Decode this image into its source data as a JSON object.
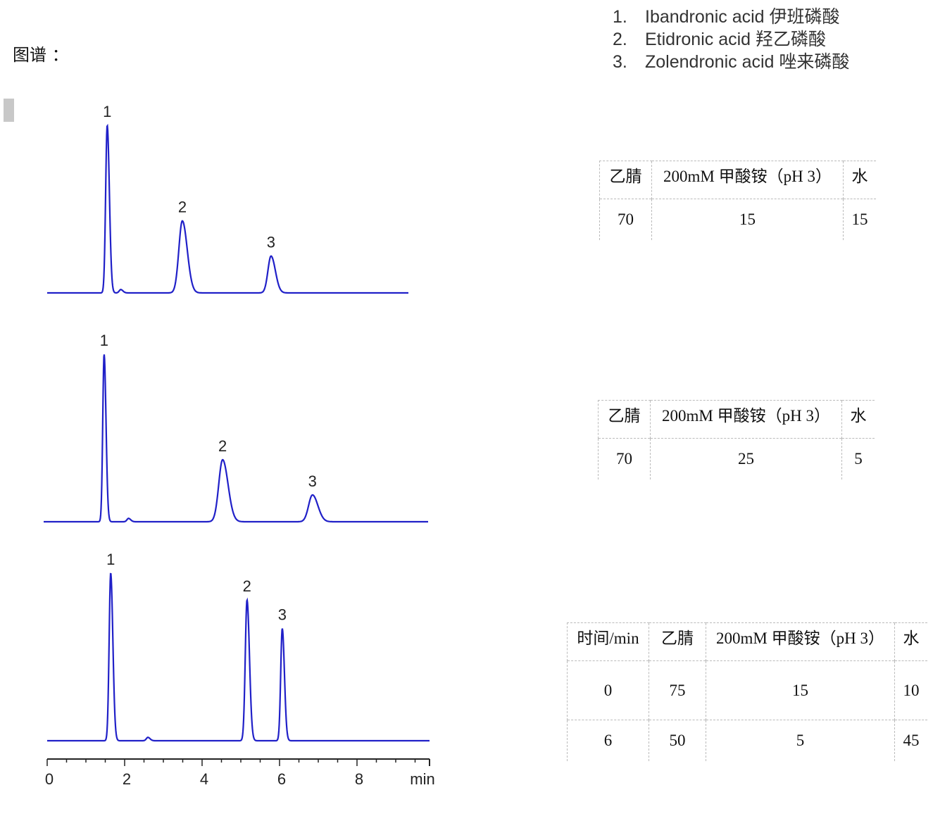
{
  "title": "图谱 ：",
  "legend": [
    {
      "num": "1.",
      "name": "Ibandronic acid 伊班磷酸"
    },
    {
      "num": "2.",
      "name": "Etidronic acid  羟乙磷酸"
    },
    {
      "num": "3.",
      "name": "Zolendronic acid 唑来磷酸"
    }
  ],
  "tables": [
    {
      "headers": [
        "乙腈",
        "200mM 甲酸铵（pH 3）",
        "水"
      ],
      "rows": [
        [
          "70",
          "15",
          "15"
        ]
      ]
    },
    {
      "headers": [
        "乙腈",
        "200mM 甲酸铵（pH 3）",
        "水"
      ],
      "rows": [
        [
          "70",
          "25",
          "5"
        ]
      ]
    },
    {
      "headers": [
        "时间/min",
        "乙腈",
        "200mM 甲酸铵（pH 3）",
        "水"
      ],
      "rows": [
        [
          "0",
          "75",
          "15",
          "10"
        ],
        [
          "6",
          "50",
          "5",
          "45"
        ]
      ]
    }
  ],
  "chart_data": {
    "type": "line",
    "xlabel": "min",
    "xticks": [
      "0",
      "2",
      "4",
      "6",
      "8"
    ],
    "xlim": [
      0,
      9.8
    ],
    "color": "#2020c8",
    "chromatograms": [
      {
        "peaks": [
          {
            "label": "1",
            "t": 1.55,
            "h": 100,
            "w": 0.04
          },
          {
            "t": 1.9,
            "h": 2,
            "w": 0.04
          },
          {
            "label": "2",
            "t": 3.49,
            "h": 43,
            "w": 0.09
          },
          {
            "label": "3",
            "t": 5.78,
            "h": 22,
            "w": 0.08
          }
        ]
      },
      {
        "peaks": [
          {
            "label": "1",
            "t": 1.47,
            "h": 100,
            "w": 0.035
          },
          {
            "t": 2.1,
            "h": 2,
            "w": 0.04
          },
          {
            "label": "2",
            "t": 4.53,
            "h": 37,
            "w": 0.1
          },
          {
            "label": "3",
            "t": 6.85,
            "h": 16,
            "w": 0.1
          }
        ]
      },
      {
        "peaks": [
          {
            "label": "1",
            "t": 1.64,
            "h": 100,
            "w": 0.04
          },
          {
            "t": 2.6,
            "h": 2,
            "w": 0.04
          },
          {
            "label": "2",
            "t": 5.16,
            "h": 84,
            "w": 0.045
          },
          {
            "label": "3",
            "t": 6.07,
            "h": 67,
            "w": 0.04
          }
        ]
      }
    ]
  }
}
